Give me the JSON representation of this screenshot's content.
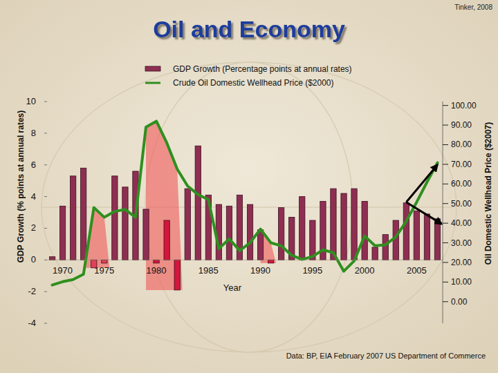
{
  "chart_data": {
    "type": "bar",
    "title": "Oil and Economy",
    "credit": "Tinker, 2008",
    "source": "Data: BP, EIA February 2007 US Department of Commerce",
    "x_label": "Year",
    "y_label": "GDP Growth (% points at annual rates)",
    "y2_label": "Oil Domestic Wellhead Price ($2007)",
    "legend": "top",
    "grid": false,
    "categories": [
      null,
      "1970",
      null,
      null,
      null,
      "1975",
      null,
      null,
      null,
      null,
      "1980",
      null,
      null,
      null,
      null,
      "1985",
      null,
      null,
      null,
      null,
      "1990",
      null,
      null,
      null,
      null,
      "1995",
      null,
      null,
      null,
      null,
      "2000",
      null,
      null,
      null,
      null,
      "2005",
      null,
      null
    ],
    "ylim": [
      -4,
      10
    ],
    "yticks": [
      -4,
      -2,
      0,
      2,
      4,
      6,
      8,
      10
    ],
    "y2lim": [
      -11,
      102
    ],
    "y2ticks": [
      {
        "value": 0,
        "label": "0.00"
      },
      {
        "value": 10,
        "label": "10.00"
      },
      {
        "value": 20,
        "label": "20.00"
      },
      {
        "value": 30,
        "label": "30.00"
      },
      {
        "value": 40,
        "label": "40.00"
      },
      {
        "value": 50,
        "label": "50.00"
      },
      {
        "value": 60,
        "label": "60.00"
      },
      {
        "value": 70,
        "label": "70.00"
      },
      {
        "value": 80,
        "label": "80.00"
      },
      {
        "value": 90,
        "label": "90.00"
      },
      {
        "value": 100,
        "label": "100.00"
      }
    ],
    "series": [
      {
        "name": "GDP Growth (Percentage points at annual rates)",
        "type": "bar",
        "color": "#8e2f52",
        "colors": [
          "#8e2f52",
          "#8e2f52",
          "#8e2f52",
          "#8e2f52",
          "#e0405a",
          "#e0405a",
          "#8e2f52",
          "#8e2f52",
          "#8e2f52",
          "#8e2f52",
          "#d4163c",
          "#d4163c",
          "#d4163c",
          "#8e2f52",
          "#8e2f52",
          "#8e2f52",
          "#8e2f52",
          "#8e2f52",
          "#8e2f52",
          "#8e2f52",
          "#8e2f52",
          "#d4163c",
          "#8e2f52",
          "#8e2f52",
          "#8e2f52",
          "#8e2f52",
          "#8e2f52",
          "#8e2f52",
          "#8e2f52",
          "#8e2f52",
          "#8e2f52",
          "#8e2f52",
          "#8e2f52",
          "#8e2f52",
          "#8e2f52",
          "#8e2f52",
          "#8e2f52",
          "#8e2f52"
        ],
        "values": [
          0.2,
          3.4,
          5.3,
          5.8,
          -0.5,
          -0.2,
          5.3,
          4.6,
          5.6,
          3.2,
          -0.2,
          2.5,
          -1.9,
          4.5,
          7.2,
          4.1,
          3.5,
          3.4,
          4.1,
          3.5,
          1.9,
          -0.2,
          3.3,
          2.7,
          4.0,
          2.5,
          3.7,
          4.5,
          4.2,
          4.5,
          3.7,
          0.8,
          1.6,
          2.5,
          3.6,
          3.1,
          2.9,
          2.6
        ]
      },
      {
        "name": "Crude Oil Domestic Wellhead Price ($2000)",
        "type": "line",
        "color": "#2f8f1f",
        "axis": "y2",
        "line_style": "solid",
        "values": [
          8.5,
          10.2,
          11.3,
          14,
          48,
          43,
          46,
          47,
          43,
          89,
          92,
          81,
          67.6,
          59,
          54.6,
          52,
          27,
          32,
          26,
          30,
          37,
          30,
          28.5,
          23.6,
          21.5,
          23,
          26.4,
          25,
          15.5,
          20.8,
          33.5,
          28.5,
          29,
          33,
          41,
          50.7,
          61,
          70.8
        ]
      }
    ]
  }
}
